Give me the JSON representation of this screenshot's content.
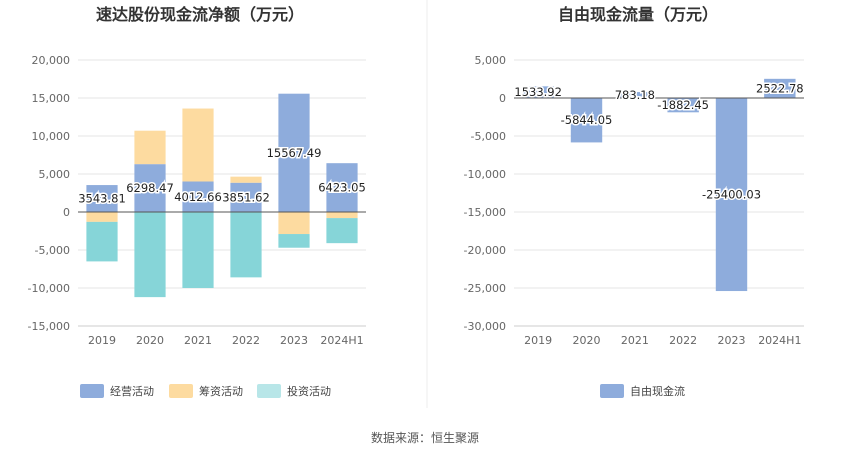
{
  "colors": {
    "operating": "#8eacdc",
    "financing": "#fddba0",
    "investing": "#86d5d8",
    "free_cash_flow": "#8eacdc",
    "investing_legend": "#b8e6e8",
    "grid": "#e6e6e6",
    "axis": "#555555"
  },
  "source": "数据来源：恒生聚源",
  "chart_data": [
    {
      "type": "bar",
      "stacked": true,
      "title": "速达股份现金流净额（万元）",
      "categories": [
        "2019",
        "2020",
        "2021",
        "2022",
        "2023",
        "2024H1"
      ],
      "ylim": [
        -15000,
        20000
      ],
      "yticks": [
        20000,
        15000,
        10000,
        5000,
        0,
        -5000,
        -10000,
        -15000
      ],
      "ytick_labels": [
        "20,000",
        "15,000",
        "10,000",
        "5,000",
        "0",
        "-5,000",
        "-10,000",
        "-15,000"
      ],
      "series": [
        {
          "name": "经营活动",
          "values": [
            3543.81,
            6298.47,
            4012.66,
            3851.62,
            15567.49,
            6423.05
          ]
        },
        {
          "name": "筹资活动",
          "values": [
            -1300,
            4400,
            9600,
            800,
            -2900,
            -800
          ]
        },
        {
          "name": "投资活动",
          "values": [
            -5200,
            -11200,
            -10000,
            -8600,
            -1800,
            -3300
          ]
        }
      ],
      "data_labels": [
        "3543.81",
        "6298.47",
        "4012.66",
        "3851.62",
        "15567.49",
        "6423.05"
      ],
      "legend_position": "bottom-center",
      "grid": true
    },
    {
      "type": "bar",
      "title": "自由现金流量（万元）",
      "categories": [
        "2019",
        "2020",
        "2021",
        "2022",
        "2023",
        "2024H1"
      ],
      "ylim": [
        -30000,
        5000
      ],
      "yticks": [
        5000,
        0,
        -5000,
        -10000,
        -15000,
        -20000,
        -25000,
        -30000
      ],
      "ytick_labels": [
        "5,000",
        "0",
        "-5,000",
        "-10,000",
        "-15,000",
        "-20,000",
        "-25,000",
        "-30,000"
      ],
      "series": [
        {
          "name": "自由现金流",
          "values": [
            1533.92,
            -5844.05,
            783.18,
            -1882.45,
            -25400.03,
            2522.78
          ]
        }
      ],
      "data_labels": [
        "1533.92",
        "-5844.05",
        "783.18",
        "-1882.45",
        "-25400.03",
        "2522.78"
      ],
      "legend_position": "bottom-center",
      "grid": true
    }
  ]
}
